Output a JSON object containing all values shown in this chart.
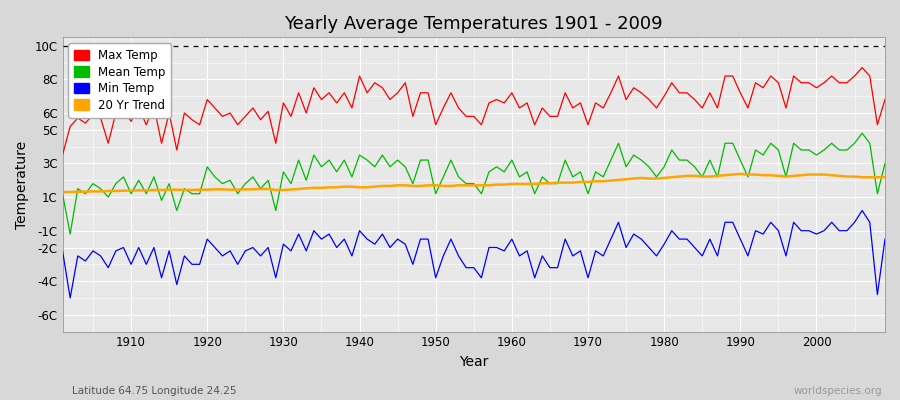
{
  "title": "Yearly Average Temperatures 1901 - 2009",
  "xlabel": "Year",
  "ylabel": "Temperature",
  "footnote_left": "Latitude 64.75 Longitude 24.25",
  "footnote_right": "worldspecies.org",
  "xlim": [
    1901,
    2009
  ],
  "ylim": [
    -7,
    10.5
  ],
  "yticks": [
    -6,
    -4,
    -2,
    -1,
    1,
    3,
    5,
    6,
    8,
    10
  ],
  "ytick_labels": [
    "-6C",
    "-4C",
    "-2C",
    "-1C",
    "1C",
    "3C",
    "5C",
    "6C",
    "8C",
    "10C"
  ],
  "xticks": [
    1910,
    1920,
    1930,
    1940,
    1950,
    1960,
    1970,
    1980,
    1990,
    2000
  ],
  "hline_y": 10,
  "bg_color": "#d8d8d8",
  "plot_bg_color": "#e8e8e8",
  "grid_major_color": "#ffffff",
  "grid_minor_color": "#dddddd",
  "max_temp_color": "#ff0000",
  "mean_temp_color": "#00bb00",
  "min_temp_color": "#0000ff",
  "trend_color": "#ffa500",
  "legend_labels": [
    "Max Temp",
    "Mean Temp",
    "Min Temp",
    "20 Yr Trend"
  ],
  "years": [
    1901,
    1902,
    1903,
    1904,
    1905,
    1906,
    1907,
    1908,
    1909,
    1910,
    1911,
    1912,
    1913,
    1914,
    1915,
    1916,
    1917,
    1918,
    1919,
    1920,
    1921,
    1922,
    1923,
    1924,
    1925,
    1926,
    1927,
    1928,
    1929,
    1930,
    1931,
    1932,
    1933,
    1934,
    1935,
    1936,
    1937,
    1938,
    1939,
    1940,
    1941,
    1942,
    1943,
    1944,
    1945,
    1946,
    1947,
    1948,
    1949,
    1950,
    1951,
    1952,
    1953,
    1954,
    1955,
    1956,
    1957,
    1958,
    1959,
    1960,
    1961,
    1962,
    1963,
    1964,
    1965,
    1966,
    1967,
    1968,
    1969,
    1970,
    1971,
    1972,
    1973,
    1974,
    1975,
    1976,
    1977,
    1978,
    1979,
    1980,
    1981,
    1982,
    1983,
    1984,
    1985,
    1986,
    1987,
    1988,
    1989,
    1990,
    1991,
    1992,
    1993,
    1994,
    1995,
    1996,
    1997,
    1998,
    1999,
    2000,
    2001,
    2002,
    2003,
    2004,
    2005,
    2006,
    2007,
    2008,
    2009
  ],
  "max_temp": [
    3.5,
    5.2,
    5.7,
    5.4,
    5.9,
    5.7,
    4.2,
    6.0,
    6.2,
    5.5,
    6.3,
    5.3,
    6.4,
    4.2,
    6.0,
    3.8,
    6.0,
    5.6,
    5.3,
    6.8,
    6.3,
    5.8,
    6.0,
    5.3,
    5.8,
    6.3,
    5.6,
    6.1,
    4.2,
    6.6,
    5.8,
    7.2,
    6.0,
    7.5,
    6.8,
    7.2,
    6.6,
    7.2,
    6.3,
    8.2,
    7.2,
    7.8,
    7.5,
    6.8,
    7.2,
    7.8,
    5.8,
    7.2,
    7.2,
    5.3,
    6.3,
    7.2,
    6.3,
    5.8,
    5.8,
    5.3,
    6.6,
    6.8,
    6.6,
    7.2,
    6.3,
    6.6,
    5.3,
    6.3,
    5.8,
    5.8,
    7.2,
    6.3,
    6.6,
    5.3,
    6.6,
    6.3,
    7.2,
    8.2,
    6.8,
    7.5,
    7.2,
    6.8,
    6.3,
    7.0,
    7.8,
    7.2,
    7.2,
    6.8,
    6.3,
    7.2,
    6.3,
    8.2,
    8.2,
    7.2,
    6.3,
    7.8,
    7.5,
    8.2,
    7.8,
    6.3,
    8.2,
    7.8,
    7.8,
    7.5,
    7.8,
    8.2,
    7.8,
    7.8,
    8.2,
    8.7,
    8.2,
    5.3,
    6.8
  ],
  "mean_temp": [
    1.2,
    -1.2,
    1.5,
    1.2,
    1.8,
    1.5,
    1.0,
    1.8,
    2.2,
    1.2,
    2.0,
    1.2,
    2.2,
    0.8,
    1.8,
    0.2,
    1.5,
    1.2,
    1.2,
    2.8,
    2.2,
    1.8,
    2.0,
    1.2,
    1.8,
    2.2,
    1.5,
    2.0,
    0.2,
    2.5,
    1.8,
    3.2,
    2.0,
    3.5,
    2.8,
    3.2,
    2.5,
    3.2,
    2.2,
    3.5,
    3.2,
    2.8,
    3.5,
    2.8,
    3.2,
    2.8,
    1.8,
    3.2,
    3.2,
    1.2,
    2.2,
    3.2,
    2.2,
    1.8,
    1.8,
    1.2,
    2.5,
    2.8,
    2.5,
    3.2,
    2.2,
    2.5,
    1.2,
    2.2,
    1.8,
    1.8,
    3.2,
    2.2,
    2.5,
    1.2,
    2.5,
    2.2,
    3.2,
    4.2,
    2.8,
    3.5,
    3.2,
    2.8,
    2.2,
    2.8,
    3.8,
    3.2,
    3.2,
    2.8,
    2.2,
    3.2,
    2.2,
    4.2,
    4.2,
    3.2,
    2.2,
    3.8,
    3.5,
    4.2,
    3.8,
    2.2,
    4.2,
    3.8,
    3.8,
    3.5,
    3.8,
    4.2,
    3.8,
    3.8,
    4.2,
    4.8,
    4.2,
    1.2,
    3.0
  ],
  "min_temp": [
    -2.2,
    -5.0,
    -2.5,
    -2.8,
    -2.2,
    -2.5,
    -3.2,
    -2.2,
    -2.0,
    -3.0,
    -2.0,
    -3.0,
    -2.0,
    -3.8,
    -2.2,
    -4.2,
    -2.5,
    -3.0,
    -3.0,
    -1.5,
    -2.0,
    -2.5,
    -2.2,
    -3.0,
    -2.2,
    -2.0,
    -2.5,
    -2.0,
    -3.8,
    -1.8,
    -2.2,
    -1.2,
    -2.2,
    -1.0,
    -1.5,
    -1.2,
    -2.0,
    -1.5,
    -2.5,
    -1.0,
    -1.5,
    -1.8,
    -1.2,
    -2.0,
    -1.5,
    -1.8,
    -3.0,
    -1.5,
    -1.5,
    -3.8,
    -2.5,
    -1.5,
    -2.5,
    -3.2,
    -3.2,
    -3.8,
    -2.0,
    -2.0,
    -2.2,
    -1.5,
    -2.5,
    -2.2,
    -3.8,
    -2.5,
    -3.2,
    -3.2,
    -1.5,
    -2.5,
    -2.2,
    -3.8,
    -2.2,
    -2.5,
    -1.5,
    -0.5,
    -2.0,
    -1.2,
    -1.5,
    -2.0,
    -2.5,
    -1.8,
    -1.0,
    -1.5,
    -1.5,
    -2.0,
    -2.5,
    -1.5,
    -2.5,
    -0.5,
    -0.5,
    -1.5,
    -2.5,
    -1.0,
    -1.2,
    -0.5,
    -1.0,
    -2.5,
    -0.5,
    -1.0,
    -1.0,
    -1.2,
    -1.0,
    -0.5,
    -1.0,
    -1.0,
    -0.5,
    0.2,
    -0.5,
    -4.8,
    -1.5
  ],
  "trend": [
    1.3,
    1.3,
    1.32,
    1.32,
    1.34,
    1.34,
    1.36,
    1.36,
    1.38,
    1.38,
    1.4,
    1.4,
    1.42,
    1.42,
    1.44,
    1.44,
    1.42,
    1.42,
    1.44,
    1.44,
    1.46,
    1.46,
    1.44,
    1.44,
    1.46,
    1.46,
    1.48,
    1.48,
    1.42,
    1.42,
    1.45,
    1.48,
    1.52,
    1.55,
    1.55,
    1.58,
    1.58,
    1.62,
    1.62,
    1.58,
    1.58,
    1.62,
    1.66,
    1.66,
    1.7,
    1.7,
    1.66,
    1.66,
    1.7,
    1.7,
    1.66,
    1.66,
    1.7,
    1.7,
    1.7,
    1.7,
    1.7,
    1.74,
    1.74,
    1.78,
    1.78,
    1.78,
    1.78,
    1.82,
    1.82,
    1.86,
    1.86,
    1.86,
    1.9,
    1.9,
    1.94,
    1.94,
    1.98,
    2.02,
    2.06,
    2.1,
    2.14,
    2.1,
    2.1,
    2.14,
    2.18,
    2.22,
    2.26,
    2.26,
    2.22,
    2.22,
    2.26,
    2.3,
    2.34,
    2.38,
    2.34,
    2.34,
    2.3,
    2.3,
    2.26,
    2.22,
    2.26,
    2.3,
    2.34,
    2.34,
    2.34,
    2.3,
    2.26,
    2.22,
    2.22,
    2.18,
    2.18,
    2.18,
    2.18
  ]
}
